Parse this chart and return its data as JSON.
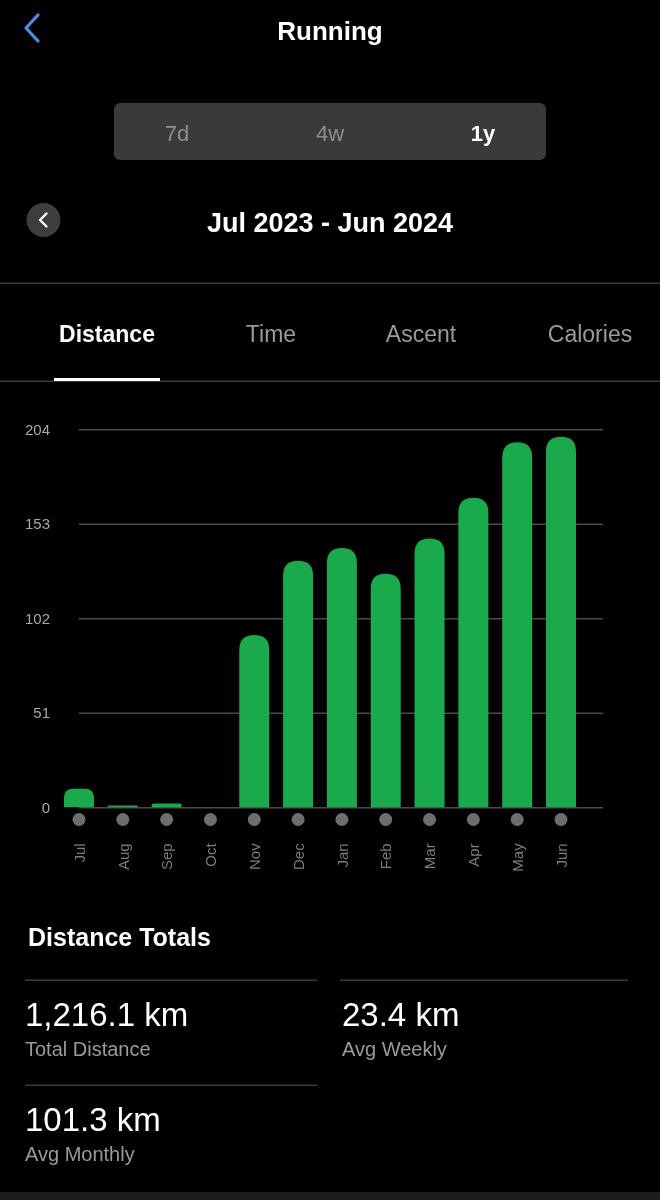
{
  "chart_data": {
    "type": "bar",
    "title": "Running",
    "subtitle": "Jul 2023 - Jun 2024",
    "categories": [
      "Jul",
      "Aug",
      "Sep",
      "Oct",
      "Nov",
      "Dec",
      "Jan",
      "Feb",
      "Mar",
      "Apr",
      "May",
      "Jun"
    ],
    "values": [
      10,
      1,
      2,
      0,
      93,
      133,
      140,
      126,
      145,
      167,
      197,
      200
    ],
    "color": "#1aaa4b",
    "ylim": [
      0,
      204
    ],
    "yticks": [
      0,
      51,
      102,
      153,
      204
    ],
    "grid": "y",
    "annotations": [
      "7d",
      "4w",
      "1y",
      "Distance",
      "Time",
      "Ascent",
      "Calories",
      "Distance Totals",
      "1,216.1 km",
      "Total Distance",
      "23.4 km",
      "Avg Weekly",
      "101.3 km",
      "Avg Monthly"
    ]
  }
}
